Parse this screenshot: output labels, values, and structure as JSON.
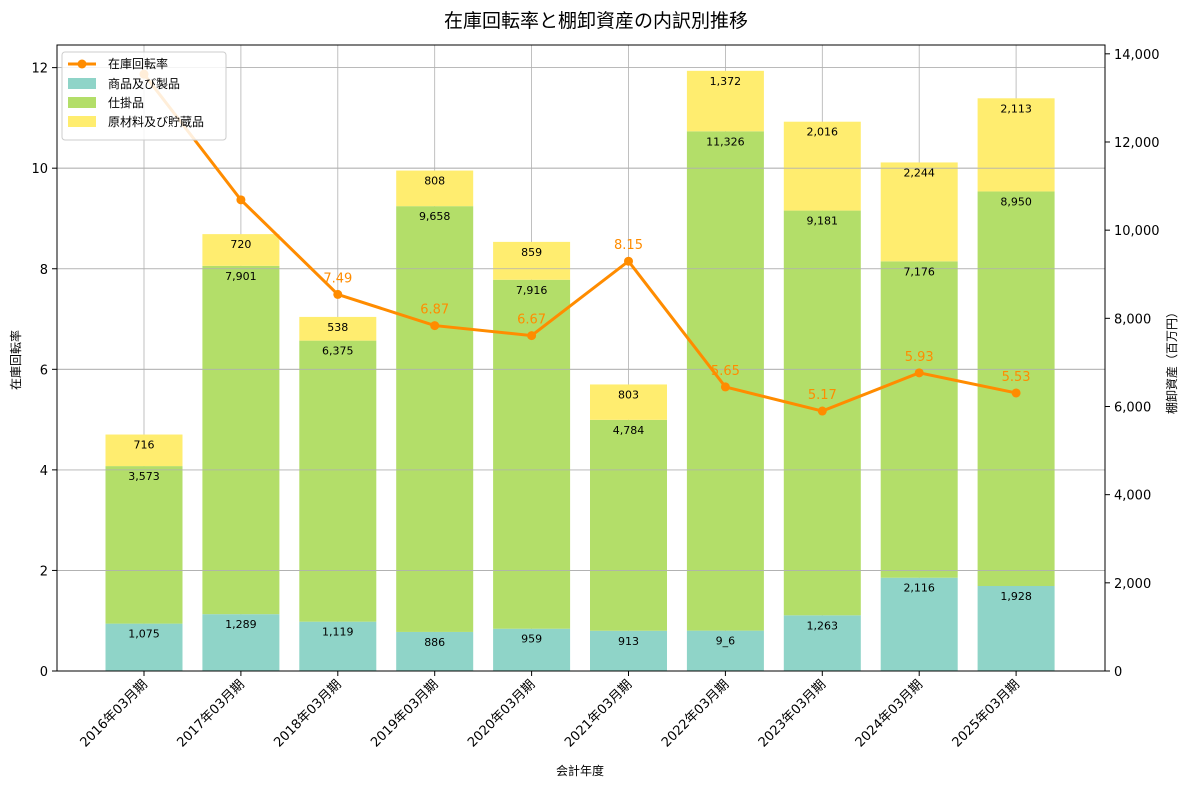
{
  "chart_data": {
    "type": "bar",
    "title": "在庫回転率と棚卸資産の内訳別推移",
    "xlabel": "会計年度",
    "ylabel_left": "在庫回転率",
    "ylabel_right": "棚卸資産（百万円）",
    "categories": [
      "2016年03月期",
      "2017年03月期",
      "2018年03月期",
      "2019年03月期",
      "2020年03月期",
      "2021年03月期",
      "2022年03月期",
      "2023年03月期",
      "2024年03月期",
      "2025年03月期"
    ],
    "stacked_series": [
      {
        "name": "商品及び製品",
        "color": "#8fd4c8",
        "values": [
          1075,
          1289,
          1119,
          886,
          959,
          913,
          916,
          1263,
          2116,
          1928
        ],
        "labels": [
          "1,075",
          "1,289",
          "1,119",
          "886",
          "959",
          "913",
          "9_6",
          "1,263",
          "2,116",
          "1,928"
        ]
      },
      {
        "name": "仕掛品",
        "color": "#b3de69",
        "values": [
          3573,
          7901,
          6375,
          9658,
          7916,
          4784,
          11326,
          9181,
          7176,
          8950
        ],
        "labels": [
          "3,573",
          "7,901",
          "6,375",
          "9,658",
          "7,916",
          "4,784",
          "11,326",
          "9,181",
          "7,176",
          "8,950"
        ]
      },
      {
        "name": "原材料及び貯蔵品",
        "color": "#ffed6f",
        "values": [
          716,
          720,
          538,
          808,
          859,
          803,
          1372,
          2016,
          2244,
          2113
        ],
        "labels": [
          "716",
          "720",
          "538",
          "808",
          "859",
          "803",
          "1,372",
          "2,016",
          "2,244",
          "2,113"
        ]
      }
    ],
    "line_series": {
      "name": "在庫回転率",
      "color": "#ff8c00",
      "values": [
        11.87,
        9.37,
        7.49,
        6.87,
        6.67,
        8.15,
        5.65,
        5.17,
        5.93,
        5.53
      ],
      "labels": [
        "",
        "",
        "7.49",
        "6.87",
        "6.67",
        "8.15",
        "5.65",
        "5.17",
        "5.93",
        "5.53"
      ]
    },
    "y_left": {
      "min": 0,
      "max": 12.45,
      "ticks": [
        0,
        2,
        4,
        6,
        8,
        10,
        12
      ],
      "tick_labels": [
        "0",
        "2",
        "4",
        "6",
        "8",
        "10",
        "12"
      ]
    },
    "y_right": {
      "min": 0,
      "max": 14200,
      "ticks": [
        0,
        2000,
        4000,
        6000,
        8000,
        10000,
        12000,
        14000
      ],
      "tick_labels": [
        "0",
        "2,000",
        "4,000",
        "6,000",
        "8,000",
        "10,000",
        "12,000",
        "14,000"
      ]
    },
    "grid": true,
    "legend_position": "top-left"
  }
}
